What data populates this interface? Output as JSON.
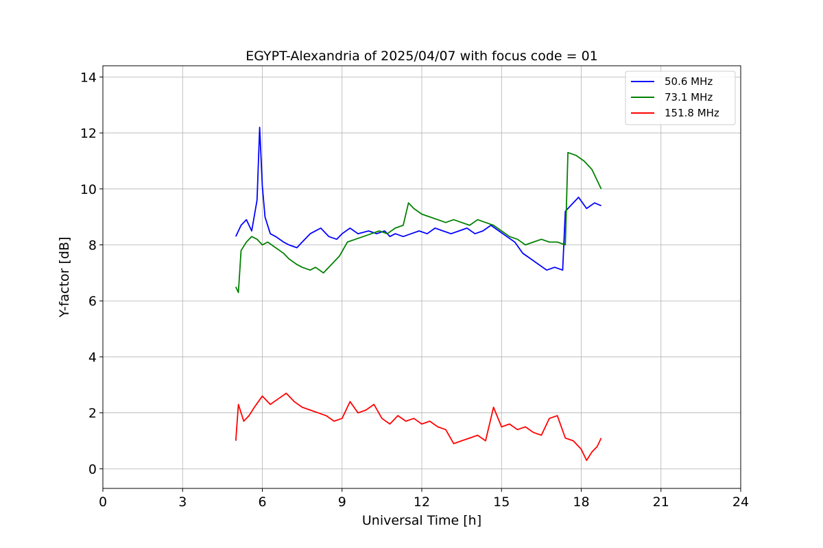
{
  "chart_data": {
    "type": "line",
    "title": "EGYPT-Alexandria of 2025/04/07 with focus code = 01",
    "xlabel": "Universal Time [h]",
    "ylabel": "Y-factor [dB]",
    "xlim": [
      0,
      24
    ],
    "ylim": [
      -0.7,
      14.4
    ],
    "xticks": [
      0,
      3,
      6,
      9,
      12,
      15,
      18,
      21,
      24
    ],
    "xtick_labels": [
      "0",
      "3",
      "6",
      "9",
      "12",
      "15",
      "18",
      "21",
      "24"
    ],
    "yticks": [
      0,
      2,
      4,
      6,
      8,
      10,
      12,
      14
    ],
    "ytick_labels": [
      "0",
      "2",
      "4",
      "6",
      "8",
      "10",
      "12",
      "14"
    ],
    "grid": true,
    "legend_position": "top-right",
    "series": [
      {
        "name": "50.6 MHz",
        "color": "#0000ff",
        "x": [
          5.0,
          5.2,
          5.4,
          5.6,
          5.8,
          5.9,
          6.0,
          6.1,
          6.3,
          6.5,
          6.8,
          7.0,
          7.3,
          7.5,
          7.8,
          8.0,
          8.2,
          8.5,
          8.8,
          9.0,
          9.3,
          9.6,
          10.0,
          10.3,
          10.6,
          10.8,
          11.0,
          11.3,
          11.6,
          11.9,
          12.2,
          12.5,
          12.8,
          13.1,
          13.4,
          13.7,
          14.0,
          14.3,
          14.6,
          14.9,
          15.2,
          15.5,
          15.8,
          16.1,
          16.4,
          16.7,
          17.0,
          17.3,
          17.4,
          17.6,
          17.9,
          18.2,
          18.5,
          18.75
        ],
        "y": [
          8.3,
          8.7,
          8.9,
          8.5,
          9.6,
          12.2,
          10.1,
          9.0,
          8.4,
          8.3,
          8.1,
          8.0,
          7.9,
          8.1,
          8.4,
          8.5,
          8.6,
          8.3,
          8.2,
          8.4,
          8.6,
          8.4,
          8.5,
          8.4,
          8.5,
          8.3,
          8.4,
          8.3,
          8.4,
          8.5,
          8.4,
          8.6,
          8.5,
          8.4,
          8.5,
          8.6,
          8.4,
          8.5,
          8.7,
          8.5,
          8.3,
          8.1,
          7.7,
          7.5,
          7.3,
          7.1,
          7.2,
          7.1,
          9.2,
          9.4,
          9.7,
          9.3,
          9.5,
          9.4
        ]
      },
      {
        "name": "73.1 MHz",
        "color": "#008000",
        "x": [
          5.0,
          5.1,
          5.2,
          5.4,
          5.6,
          5.8,
          6.0,
          6.2,
          6.5,
          6.8,
          7.0,
          7.3,
          7.5,
          7.8,
          8.0,
          8.3,
          8.6,
          8.9,
          9.2,
          9.5,
          9.8,
          10.1,
          10.4,
          10.7,
          11.0,
          11.3,
          11.5,
          11.7,
          12.0,
          12.3,
          12.6,
          12.9,
          13.2,
          13.5,
          13.8,
          14.1,
          14.4,
          14.7,
          15.0,
          15.3,
          15.6,
          15.9,
          16.2,
          16.5,
          16.8,
          17.1,
          17.4,
          17.5,
          17.8,
          18.1,
          18.4,
          18.75
        ],
        "y": [
          6.5,
          6.3,
          7.8,
          8.1,
          8.3,
          8.2,
          8.0,
          8.1,
          7.9,
          7.7,
          7.5,
          7.3,
          7.2,
          7.1,
          7.2,
          7.0,
          7.3,
          7.6,
          8.1,
          8.2,
          8.3,
          8.4,
          8.5,
          8.4,
          8.6,
          8.7,
          9.5,
          9.3,
          9.1,
          9.0,
          8.9,
          8.8,
          8.9,
          8.8,
          8.7,
          8.9,
          8.8,
          8.7,
          8.5,
          8.3,
          8.2,
          8.0,
          8.1,
          8.2,
          8.1,
          8.1,
          8.0,
          11.3,
          11.2,
          11.0,
          10.7,
          10.0
        ]
      },
      {
        "name": "151.8 MHz",
        "color": "#ff0000",
        "x": [
          5.0,
          5.1,
          5.3,
          5.5,
          5.7,
          6.0,
          6.3,
          6.6,
          6.9,
          7.2,
          7.5,
          7.8,
          8.1,
          8.4,
          8.7,
          9.0,
          9.3,
          9.6,
          9.9,
          10.2,
          10.5,
          10.8,
          11.1,
          11.4,
          11.7,
          12.0,
          12.3,
          12.6,
          12.9,
          13.2,
          13.5,
          13.8,
          14.1,
          14.4,
          14.7,
          15.0,
          15.3,
          15.6,
          15.9,
          16.2,
          16.5,
          16.8,
          17.1,
          17.4,
          17.7,
          18.0,
          18.2,
          18.4,
          18.6,
          18.75
        ],
        "y": [
          1.0,
          2.3,
          1.7,
          1.9,
          2.2,
          2.6,
          2.3,
          2.5,
          2.7,
          2.4,
          2.2,
          2.1,
          2.0,
          1.9,
          1.7,
          1.8,
          2.4,
          2.0,
          2.1,
          2.3,
          1.8,
          1.6,
          1.9,
          1.7,
          1.8,
          1.6,
          1.7,
          1.5,
          1.4,
          0.9,
          1.0,
          1.1,
          1.2,
          1.0,
          2.2,
          1.5,
          1.6,
          1.4,
          1.5,
          1.3,
          1.2,
          1.8,
          1.9,
          1.1,
          1.0,
          0.7,
          0.3,
          0.6,
          0.8,
          1.1
        ]
      }
    ]
  }
}
